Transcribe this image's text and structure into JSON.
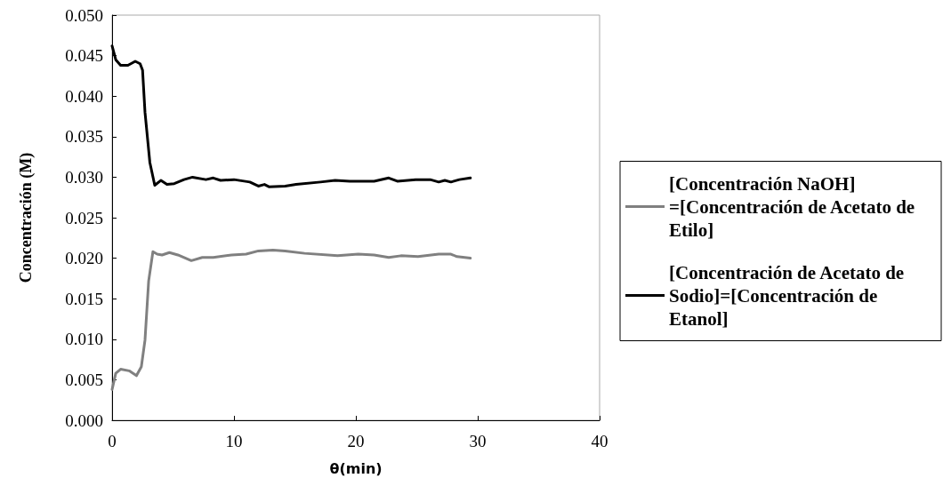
{
  "chart_data": {
    "type": "line",
    "xlabel": "θ(min)",
    "ylabel": "Concentración (M)",
    "xlim": [
      0,
      40
    ],
    "xticks": [
      0,
      10,
      20,
      30,
      40
    ],
    "ylim": [
      0,
      0.05
    ],
    "yticks": [
      {
        "value": 0,
        "label": "0.000"
      },
      {
        "value": 0.005,
        "label": "0.005"
      },
      {
        "value": 0.01,
        "label": "0.010"
      },
      {
        "value": 0.015,
        "label": "0.015"
      },
      {
        "value": 0.02,
        "label": "0.020"
      },
      {
        "value": 0.025,
        "label": "0.025"
      },
      {
        "value": 0.03,
        "label": "0.030"
      },
      {
        "value": 0.035,
        "label": "0.035"
      },
      {
        "value": 0.04,
        "label": "0.040"
      },
      {
        "value": 0.045,
        "label": "0.045"
      },
      {
        "value": 0.05,
        "label": "0.050"
      }
    ],
    "grid": false,
    "legend": "right",
    "marker": "none",
    "line_style": "solid",
    "series": [
      {
        "name": "[Concentración NaOH]=[Concentración de Acetato de Etilo]",
        "color": "#808080",
        "x": [
          0,
          0.3,
          0.7,
          1.4,
          2.0,
          2.4,
          2.7,
          3.0,
          3.35,
          3.7,
          4.1,
          4.7,
          5.4,
          6.5,
          7.4,
          8.3,
          9.8,
          11.0,
          12.0,
          13.2,
          14.2,
          15.8,
          18.5,
          20.2,
          21.5,
          22.7,
          23.7,
          25.1,
          26.8,
          27.8,
          28.3,
          29.4
        ],
        "values": [
          0.0038,
          0.0058,
          0.0063,
          0.0061,
          0.0055,
          0.0066,
          0.0099,
          0.0172,
          0.0208,
          0.0205,
          0.0204,
          0.0207,
          0.0204,
          0.0197,
          0.0201,
          0.0201,
          0.0204,
          0.0205,
          0.0209,
          0.021,
          0.0209,
          0.0206,
          0.0203,
          0.0205,
          0.0204,
          0.0201,
          0.0203,
          0.0202,
          0.0205,
          0.0205,
          0.0202,
          0.02
        ]
      },
      {
        "name": "[Concentración de Acetato de Sodio]=[Concentración de Etanol]",
        "color": "#000000",
        "x": [
          0,
          0.3,
          0.7,
          1.3,
          1.9,
          2.3,
          2.5,
          2.7,
          3.1,
          3.5,
          4.0,
          4.5,
          5.1,
          5.9,
          6.6,
          7.7,
          8.3,
          8.9,
          10.0,
          11.3,
          12.0,
          12.5,
          12.9,
          14.2,
          15.1,
          17.1,
          18.3,
          19.5,
          21.5,
          22.7,
          23.4,
          24.9,
          26.1,
          26.8,
          27.3,
          27.8,
          28.5,
          29.4
        ],
        "values": [
          0.0462,
          0.0445,
          0.0438,
          0.0438,
          0.0443,
          0.044,
          0.0432,
          0.038,
          0.0318,
          0.029,
          0.0296,
          0.0291,
          0.0292,
          0.0297,
          0.03,
          0.0297,
          0.0299,
          0.0296,
          0.0297,
          0.0294,
          0.0289,
          0.0291,
          0.0288,
          0.0289,
          0.0291,
          0.0294,
          0.0296,
          0.0295,
          0.0295,
          0.0299,
          0.0295,
          0.0297,
          0.0297,
          0.0294,
          0.0296,
          0.0294,
          0.0297,
          0.0299
        ]
      }
    ]
  }
}
